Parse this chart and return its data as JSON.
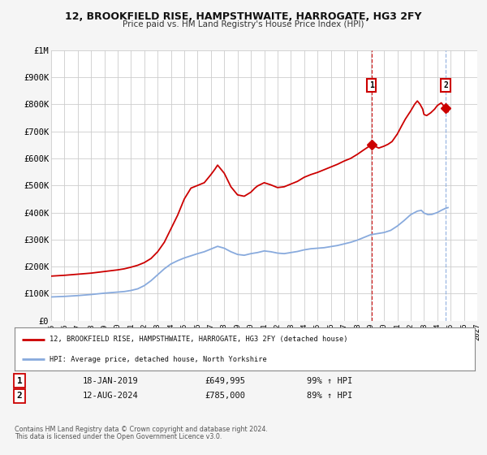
{
  "title": "12, BROOKFIELD RISE, HAMPSTHWAITE, HARROGATE, HG3 2FY",
  "subtitle": "Price paid vs. HM Land Registry's House Price Index (HPI)",
  "bg_color": "#f5f5f5",
  "plot_bg_color": "#ffffff",
  "grid_color": "#cccccc",
  "red_line_color": "#cc0000",
  "blue_line_color": "#88aadd",
  "xlim_min": 1995,
  "xlim_max": 2027,
  "ylim_min": 0,
  "ylim_max": 1000000,
  "yticks": [
    0,
    100000,
    200000,
    300000,
    400000,
    500000,
    600000,
    700000,
    800000,
    900000,
    1000000
  ],
  "ytick_labels": [
    "£0",
    "£100K",
    "£200K",
    "£300K",
    "£400K",
    "£500K",
    "£600K",
    "£700K",
    "£800K",
    "£900K",
    "£1M"
  ],
  "xticks": [
    1995,
    1996,
    1997,
    1998,
    1999,
    2000,
    2001,
    2002,
    2003,
    2004,
    2005,
    2006,
    2007,
    2008,
    2009,
    2010,
    2011,
    2012,
    2013,
    2014,
    2015,
    2016,
    2017,
    2018,
    2019,
    2020,
    2021,
    2022,
    2023,
    2024,
    2025,
    2026,
    2027
  ],
  "sale1_x": 2019.05,
  "sale1_y": 649995,
  "sale1_label": "1",
  "sale1_date": "18-JAN-2019",
  "sale1_price": "£649,995",
  "sale1_hpi": "99% ↑ HPI",
  "sale2_x": 2024.62,
  "sale2_y": 785000,
  "sale2_label": "2",
  "sale2_date": "12-AUG-2024",
  "sale2_price": "£785,000",
  "sale2_hpi": "89% ↑ HPI",
  "vline1_x": 2019.05,
  "vline2_x": 2024.62,
  "legend_line1": "12, BROOKFIELD RISE, HAMPSTHWAITE, HARROGATE, HG3 2FY (detached house)",
  "legend_line2": "HPI: Average price, detached house, North Yorkshire",
  "footer1": "Contains HM Land Registry data © Crown copyright and database right 2024.",
  "footer2": "This data is licensed under the Open Government Licence v3.0.",
  "red_anchors": [
    [
      1995.0,
      165000
    ],
    [
      1996.0,
      168000
    ],
    [
      1997.0,
      172000
    ],
    [
      1998.0,
      176000
    ],
    [
      1999.0,
      182000
    ],
    [
      2000.0,
      188000
    ],
    [
      2000.5,
      192000
    ],
    [
      2001.0,
      198000
    ],
    [
      2001.5,
      205000
    ],
    [
      2002.0,
      215000
    ],
    [
      2002.5,
      230000
    ],
    [
      2003.0,
      255000
    ],
    [
      2003.5,
      290000
    ],
    [
      2004.0,
      340000
    ],
    [
      2004.5,
      390000
    ],
    [
      2005.0,
      450000
    ],
    [
      2005.5,
      490000
    ],
    [
      2006.0,
      500000
    ],
    [
      2006.5,
      510000
    ],
    [
      2007.0,
      540000
    ],
    [
      2007.3,
      560000
    ],
    [
      2007.5,
      575000
    ],
    [
      2008.0,
      545000
    ],
    [
      2008.5,
      495000
    ],
    [
      2009.0,
      465000
    ],
    [
      2009.5,
      460000
    ],
    [
      2010.0,
      475000
    ],
    [
      2010.3,
      490000
    ],
    [
      2010.5,
      498000
    ],
    [
      2011.0,
      510000
    ],
    [
      2011.5,
      502000
    ],
    [
      2012.0,
      492000
    ],
    [
      2012.5,
      495000
    ],
    [
      2013.0,
      505000
    ],
    [
      2013.5,
      515000
    ],
    [
      2014.0,
      530000
    ],
    [
      2014.5,
      540000
    ],
    [
      2015.0,
      548000
    ],
    [
      2015.5,
      558000
    ],
    [
      2016.0,
      568000
    ],
    [
      2016.5,
      578000
    ],
    [
      2017.0,
      590000
    ],
    [
      2017.5,
      600000
    ],
    [
      2018.0,
      615000
    ],
    [
      2018.5,
      632000
    ],
    [
      2019.05,
      649995
    ],
    [
      2019.3,
      645000
    ],
    [
      2019.6,
      638000
    ],
    [
      2020.0,
      645000
    ],
    [
      2020.3,
      652000
    ],
    [
      2020.6,
      662000
    ],
    [
      2021.0,
      690000
    ],
    [
      2021.3,
      718000
    ],
    [
      2021.6,
      745000
    ],
    [
      2022.0,
      775000
    ],
    [
      2022.3,
      800000
    ],
    [
      2022.5,
      812000
    ],
    [
      2022.7,
      800000
    ],
    [
      2022.9,
      782000
    ],
    [
      2023.0,
      762000
    ],
    [
      2023.2,
      758000
    ],
    [
      2023.5,
      768000
    ],
    [
      2023.8,
      782000
    ],
    [
      2024.0,
      795000
    ],
    [
      2024.3,
      805000
    ],
    [
      2024.62,
      785000
    ],
    [
      2024.8,
      772000
    ]
  ],
  "blue_anchors": [
    [
      1995.0,
      88000
    ],
    [
      1996.0,
      90000
    ],
    [
      1997.0,
      93000
    ],
    [
      1998.0,
      97000
    ],
    [
      1999.0,
      102000
    ],
    [
      2000.0,
      106000
    ],
    [
      2000.5,
      108000
    ],
    [
      2001.0,
      112000
    ],
    [
      2001.5,
      118000
    ],
    [
      2002.0,
      130000
    ],
    [
      2002.5,
      148000
    ],
    [
      2003.0,
      170000
    ],
    [
      2003.5,
      192000
    ],
    [
      2004.0,
      210000
    ],
    [
      2004.5,
      222000
    ],
    [
      2005.0,
      232000
    ],
    [
      2005.5,
      240000
    ],
    [
      2006.0,
      248000
    ],
    [
      2006.5,
      255000
    ],
    [
      2007.0,
      265000
    ],
    [
      2007.5,
      275000
    ],
    [
      2008.0,
      268000
    ],
    [
      2008.5,
      255000
    ],
    [
      2009.0,
      245000
    ],
    [
      2009.5,
      242000
    ],
    [
      2010.0,
      248000
    ],
    [
      2010.5,
      252000
    ],
    [
      2011.0,
      258000
    ],
    [
      2011.5,
      255000
    ],
    [
      2012.0,
      250000
    ],
    [
      2012.5,
      248000
    ],
    [
      2013.0,
      252000
    ],
    [
      2013.5,
      256000
    ],
    [
      2014.0,
      262000
    ],
    [
      2014.5,
      266000
    ],
    [
      2015.0,
      268000
    ],
    [
      2015.5,
      270000
    ],
    [
      2016.0,
      274000
    ],
    [
      2016.5,
      278000
    ],
    [
      2017.0,
      284000
    ],
    [
      2017.5,
      290000
    ],
    [
      2018.0,
      298000
    ],
    [
      2018.5,
      308000
    ],
    [
      2019.0,
      318000
    ],
    [
      2019.5,
      322000
    ],
    [
      2020.0,
      326000
    ],
    [
      2020.5,
      334000
    ],
    [
      2021.0,
      350000
    ],
    [
      2021.5,
      370000
    ],
    [
      2022.0,
      392000
    ],
    [
      2022.5,
      405000
    ],
    [
      2022.8,
      408000
    ],
    [
      2023.0,
      398000
    ],
    [
      2023.3,
      392000
    ],
    [
      2023.6,
      393000
    ],
    [
      2024.0,
      400000
    ],
    [
      2024.3,
      408000
    ],
    [
      2024.6,
      415000
    ],
    [
      2024.8,
      418000
    ]
  ]
}
